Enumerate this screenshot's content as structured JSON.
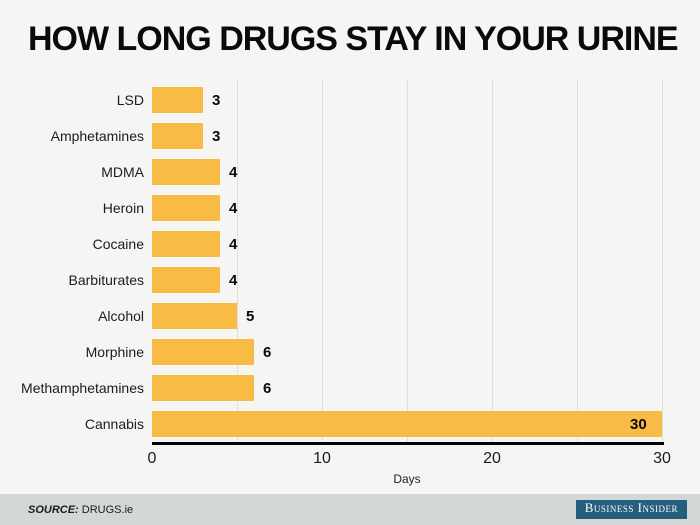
{
  "page": {
    "background": "#F5F5F3"
  },
  "chart_data": {
    "type": "bar",
    "orientation": "horizontal",
    "title": "HOW LONG DRUGS STAY IN YOUR URINE",
    "categories": [
      "LSD",
      "Amphetamines",
      "MDMA",
      "Heroin",
      "Cocaine",
      "Barbiturates",
      "Alcohol",
      "Morphine",
      "Methamphetamines",
      "Cannabis"
    ],
    "values": [
      3,
      3,
      4,
      4,
      4,
      4,
      5,
      6,
      6,
      30
    ],
    "xlabel": "Days",
    "ylabel": "",
    "xlim": [
      0,
      30
    ],
    "grid_ticks": [
      5,
      10,
      15,
      20,
      25,
      30
    ],
    "tick_labels": [
      "0",
      "10",
      "20",
      "30"
    ],
    "tick_values": [
      0,
      10,
      20,
      30
    ],
    "grid_on": true,
    "legend": "none",
    "bar_color": "#F8BC46",
    "grid_color": "#DFDFDC",
    "axis_color": "#000000",
    "value_label_color": "#0A0A0A"
  },
  "footer": {
    "source_label": "SOURCE:",
    "source_value": "DRUGS.ie",
    "brand_badge_text": "Business Insider",
    "badge_bg": "#265F7D",
    "footer_bg": "#D3D7D6"
  }
}
